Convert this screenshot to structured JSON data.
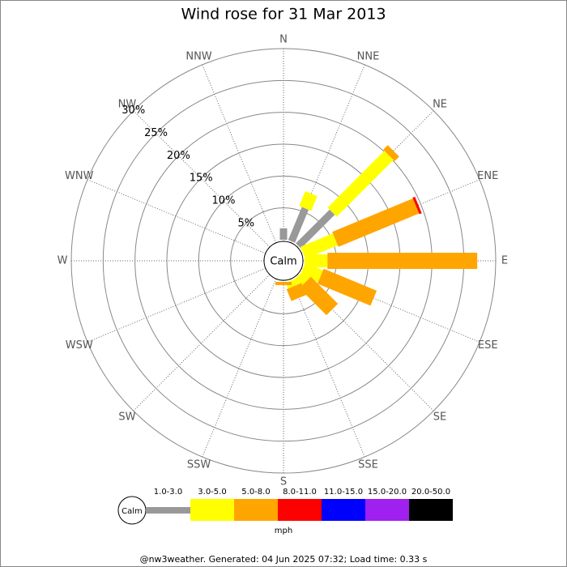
{
  "chart_data": {
    "type": "windrose",
    "title": "Wind rose for 31 Mar 2013",
    "calm_label": "Calm",
    "categories": [
      "N",
      "NNE",
      "NE",
      "ENE",
      "E",
      "ESE",
      "SE",
      "SSE",
      "S",
      "SSW",
      "SW",
      "WSW",
      "W",
      "WNW",
      "NW",
      "NNW"
    ],
    "series": [
      {
        "name": "1.0-3.0",
        "color": "#999999",
        "values": [
          1.8,
          5.6,
          7.5,
          0,
          0,
          0,
          0,
          0,
          0,
          0,
          0,
          0,
          0,
          0,
          0,
          0
        ]
      },
      {
        "name": "3.0-5.0",
        "color": "#ffff00",
        "values": [
          0,
          2.5,
          12.6,
          5.5,
          3.6,
          3.0,
          1.5,
          1.0,
          0,
          0,
          0,
          0,
          0,
          0,
          0,
          0
        ]
      },
      {
        "name": "5.0-8.0",
        "color": "#ffa500",
        "values": [
          0,
          0,
          1.0,
          13.7,
          23.5,
          9.0,
          6.0,
          2.0,
          0.5,
          0,
          0,
          0,
          0,
          0,
          0,
          0
        ]
      },
      {
        "name": "8.0-11.0",
        "color": "#ff0000",
        "values": [
          0,
          0,
          0,
          0.4,
          0,
          0,
          0,
          0,
          0,
          0,
          0,
          0,
          0,
          0,
          0,
          0
        ]
      },
      {
        "name": "11.0-15.0",
        "color": "#0000ff",
        "values": [
          0,
          0,
          0,
          0,
          0,
          0,
          0,
          0,
          0,
          0,
          0,
          0,
          0,
          0,
          0,
          0
        ]
      },
      {
        "name": "15.0-20.0",
        "color": "#a020f0",
        "values": [
          0,
          0,
          0,
          0,
          0,
          0,
          0,
          0,
          0,
          0,
          0,
          0,
          0,
          0,
          0,
          0
        ]
      },
      {
        "name": "20.0-50.0",
        "color": "#000000",
        "values": [
          0,
          0,
          0,
          0,
          0,
          0,
          0,
          0,
          0,
          0,
          0,
          0,
          0,
          0,
          0,
          0
        ]
      }
    ],
    "rlim": [
      0,
      30
    ],
    "rticks": [
      {
        "value": 5,
        "label": "5%"
      },
      {
        "value": 10,
        "label": "10%"
      },
      {
        "value": 15,
        "label": "15%"
      },
      {
        "value": 20,
        "label": "20%"
      },
      {
        "value": 25,
        "label": "25%"
      },
      {
        "value": 30,
        "label": "30%"
      }
    ],
    "units": "mph",
    "footer": "@nw3weather. Generated: 04 Jun 2025 07:32; Load time: 0.33 s"
  }
}
